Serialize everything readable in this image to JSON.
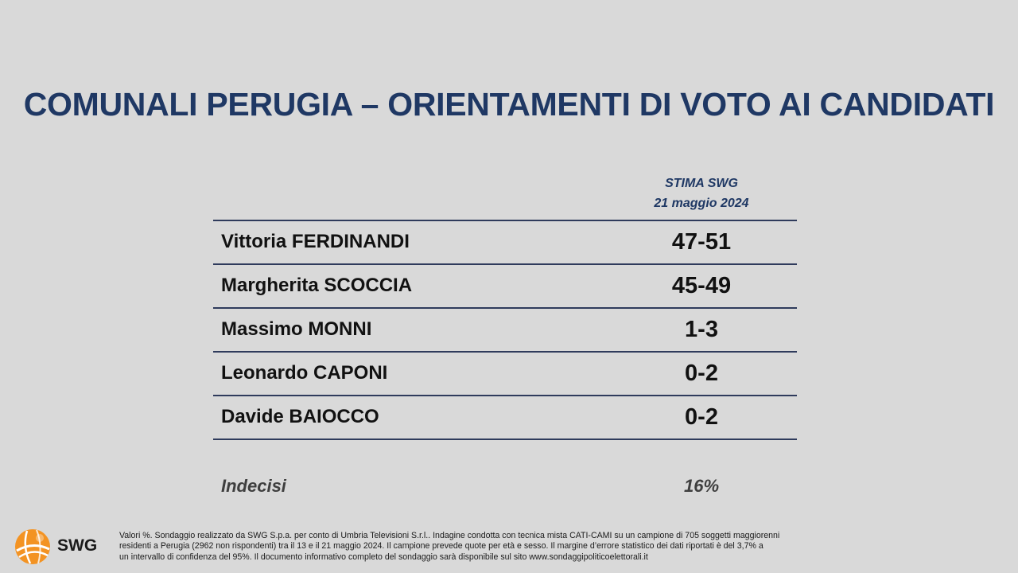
{
  "title": "COMUNALI PERUGIA – ORIENTAMENTI DI VOTO AI CANDIDATI",
  "column_header": {
    "line1": "STIMA SWG",
    "line2": "21 maggio 2024"
  },
  "rows": [
    {
      "name": "Vittoria FERDINANDI",
      "value": "47-51"
    },
    {
      "name": "Margherita SCOCCIA",
      "value": "45-49"
    },
    {
      "name": "Massimo MONNI",
      "value": "1-3"
    },
    {
      "name": "Leonardo CAPONI",
      "value": "0-2"
    },
    {
      "name": "Davide BAIOCCO",
      "value": "0-2"
    }
  ],
  "undecided": {
    "label": "Indecisi",
    "value": "16%"
  },
  "logo": {
    "text": "SWG",
    "icon": "swg-globe-logo-icon",
    "color": "#f39323"
  },
  "footnote": [
    "Valori %. Sondaggio realizzato da SWG S.p.a. per conto di Umbria Televisioni S.r.l.. Indagine condotta con tecnica mista CATI-CAMI su un campione di 705 soggetti maggiorenni",
    "residenti a Perugia (2962 non rispondenti) tra il 13 e il 21 maggio 2024. Il campione prevede quote per età e sesso. Il margine d’errore statistico dei dati riportati è del 3,7% a",
    "un intervallo di confidenza del 95%. Il documento informativo completo del sondaggio sarà disponibile sul sito www.sondaggipoliticoelettorali.it"
  ]
}
